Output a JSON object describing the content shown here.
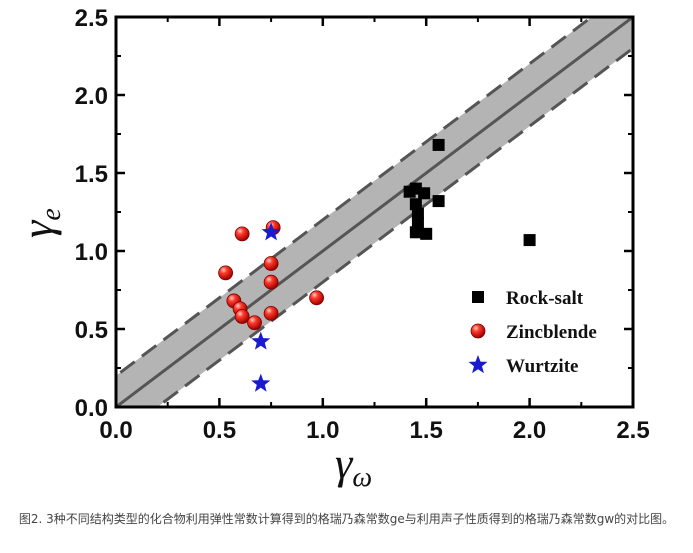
{
  "chart_data": {
    "type": "scatter",
    "xlabel_symbol": "γ",
    "xlabel_sub": "ω",
    "ylabel_symbol": "γ",
    "ylabel_sub": "e",
    "xlim": [
      0.0,
      2.5
    ],
    "ylim": [
      0.0,
      2.5
    ],
    "xticks": [
      "0.0",
      "0.5",
      "1.0",
      "1.5",
      "2.0",
      "2.5"
    ],
    "yticks": [
      "0.0",
      "0.5",
      "1.0",
      "1.5",
      "2.0",
      "2.5"
    ],
    "legend_position": "lower-right",
    "band": {
      "center_slope": 1.0,
      "half_width": 0.2
    },
    "series": [
      {
        "name": "Rock-salt",
        "marker": "square",
        "color": "#000000",
        "points": [
          {
            "x": 1.56,
            "y": 1.68
          },
          {
            "x": 1.42,
            "y": 1.38
          },
          {
            "x": 1.45,
            "y": 1.4
          },
          {
            "x": 1.49,
            "y": 1.37
          },
          {
            "x": 1.45,
            "y": 1.3
          },
          {
            "x": 1.46,
            "y": 1.24
          },
          {
            "x": 1.46,
            "y": 1.18
          },
          {
            "x": 1.45,
            "y": 1.12
          },
          {
            "x": 1.5,
            "y": 1.11
          },
          {
            "x": 1.56,
            "y": 1.32
          },
          {
            "x": 2.0,
            "y": 1.07
          }
        ]
      },
      {
        "name": "Zincblende",
        "marker": "circle",
        "color": "#e01010",
        "points": [
          {
            "x": 0.61,
            "y": 1.11
          },
          {
            "x": 0.76,
            "y": 1.15
          },
          {
            "x": 0.75,
            "y": 0.92
          },
          {
            "x": 0.53,
            "y": 0.86
          },
          {
            "x": 0.75,
            "y": 0.8
          },
          {
            "x": 0.97,
            "y": 0.7
          },
          {
            "x": 0.57,
            "y": 0.68
          },
          {
            "x": 0.6,
            "y": 0.63
          },
          {
            "x": 0.61,
            "y": 0.58
          },
          {
            "x": 0.75,
            "y": 0.6
          },
          {
            "x": 0.67,
            "y": 0.54
          }
        ]
      },
      {
        "name": "Wurtzite",
        "marker": "star",
        "color": "#1a1ad0",
        "points": [
          {
            "x": 0.75,
            "y": 1.12
          },
          {
            "x": 0.7,
            "y": 0.42
          },
          {
            "x": 0.7,
            "y": 0.15
          }
        ]
      }
    ]
  },
  "caption": "图2. 3种不同结构类型的化合物利用弹性常数计算得到的格瑞乃森常数ge与利用声子性质得到的格瑞乃森常数gw的对比图。"
}
